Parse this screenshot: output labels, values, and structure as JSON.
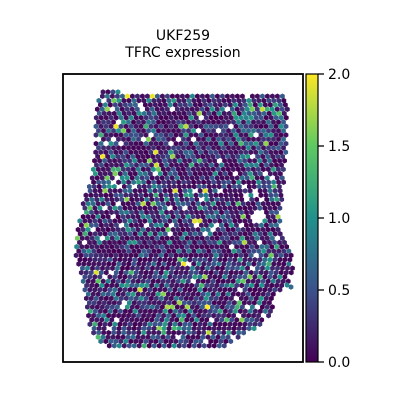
{
  "chart_data": {
    "type": "scatter",
    "title": "UKF259",
    "subtitle": "TFRC expression",
    "xlabel": "",
    "ylabel": "",
    "grid": false,
    "marker": "hexagon",
    "colormap": "viridis",
    "colorbar": {
      "range": [
        0.0,
        2.0
      ],
      "ticks": [
        0.0,
        0.5,
        1.0,
        1.5,
        2.0
      ],
      "tick_labels": [
        "0.0",
        "0.5",
        "1.0",
        "1.5",
        "2.0"
      ]
    },
    "value_distribution": {
      "min": 0.0,
      "max": 2.0,
      "typical_range": [
        0.0,
        0.8
      ],
      "note_visible": false
    },
    "colors": {
      "low": "#440154",
      "mid_low": "#3b528b",
      "mid": "#21918c",
      "mid_high": "#5ec962",
      "high": "#fde725"
    }
  }
}
